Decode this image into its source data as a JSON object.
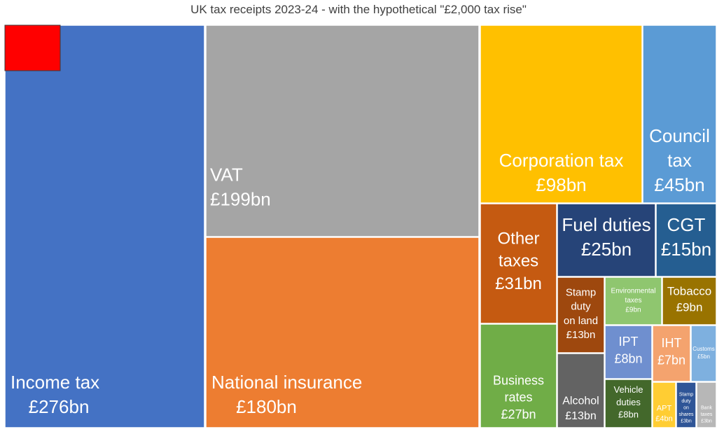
{
  "chart_data": {
    "type": "treemap",
    "title": "UK tax receipts 2023-24 - with the hypothetical \"£2,000 tax rise\"",
    "unit": "£bn",
    "items": [
      {
        "id": "income-tax",
        "name": "Income tax",
        "value": 276,
        "label": "£276bn",
        "color": "#4472C4"
      },
      {
        "id": "vat",
        "name": "VAT",
        "value": 199,
        "label": "£199bn",
        "color": "#A5A5A5"
      },
      {
        "id": "national-insurance",
        "name": "National insurance",
        "value": 180,
        "label": "£180bn",
        "color": "#ED7D31"
      },
      {
        "id": "corporation-tax",
        "name": "Corporation tax",
        "value": 98,
        "label": "£98bn",
        "color": "#FFC000"
      },
      {
        "id": "council-tax",
        "name": "Council tax",
        "value": 45,
        "label": "£45bn",
        "color": "#5B9BD5"
      },
      {
        "id": "other-taxes",
        "name": "Other taxes",
        "value": 31,
        "label": "£31bn",
        "color": "#C55A11"
      },
      {
        "id": "fuel-duties",
        "name": "Fuel duties",
        "value": 25,
        "label": "£25bn",
        "color": "#264478"
      },
      {
        "id": "cgt",
        "name": "CGT",
        "value": 15,
        "label": "£15bn",
        "color": "#255E91"
      },
      {
        "id": "business-rates",
        "name": "Business rates",
        "value": 27,
        "label": "£27bn",
        "color": "#70AD47"
      },
      {
        "id": "stamp-duty-land",
        "name": "Stamp duty on land",
        "value": 13,
        "label": "£13bn",
        "color": "#9E480E"
      },
      {
        "id": "environmental-taxes",
        "name": "Environmental taxes",
        "value": 9,
        "label": "£9bn",
        "color": "#8FC66F"
      },
      {
        "id": "tobacco",
        "name": "Tobacco",
        "value": 9,
        "label": "£9bn",
        "color": "#997300"
      },
      {
        "id": "ipt",
        "name": "IPT",
        "value": 8,
        "label": "£8bn",
        "color": "#6F8FCF"
      },
      {
        "id": "iht",
        "name": "IHT",
        "value": 7,
        "label": "£7bn",
        "color": "#F4A36E"
      },
      {
        "id": "customs",
        "name": "Customs",
        "value": 5,
        "label": "£5bn",
        "color": "#7EB0DF"
      },
      {
        "id": "alcohol",
        "name": "Alcohol",
        "value": 13,
        "label": "£13bn",
        "color": "#636363"
      },
      {
        "id": "vehicle-duties",
        "name": "Vehicle duties",
        "value": 8,
        "label": "£8bn",
        "color": "#43682B"
      },
      {
        "id": "apt",
        "name": "APT",
        "value": 4,
        "label": "£4bn",
        "color": "#FFCD33"
      },
      {
        "id": "stamp-duty-shares",
        "name": "Stamp duty on shares",
        "value": 3,
        "label": "£3bn",
        "color": "#2F5597"
      },
      {
        "id": "bank-taxes",
        "name": "Bank taxes",
        "value": 3,
        "label": "£3bn",
        "color": "#B7B7B7"
      }
    ],
    "highlight": {
      "name": "hypothetical £2,000 tax rise",
      "color": "#FF0000"
    }
  }
}
